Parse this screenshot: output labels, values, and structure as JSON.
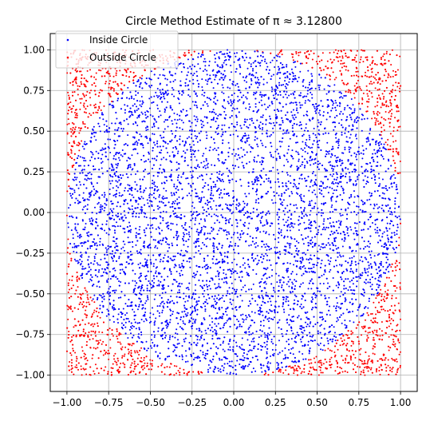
{
  "chart_data": {
    "type": "scatter",
    "title": "Circle Method Estimate of π ≈ 3.12800",
    "xlabel": "",
    "ylabel": "",
    "xlim": [
      -1.1,
      1.1
    ],
    "ylim": [
      -1.1,
      1.1
    ],
    "xticks": [
      -1.0,
      -0.75,
      -0.5,
      -0.25,
      0.0,
      0.25,
      0.5,
      0.75,
      1.0
    ],
    "yticks": [
      -1.0,
      -0.75,
      -0.5,
      -0.25,
      0.0,
      0.25,
      0.5,
      0.75,
      1.0
    ],
    "xtick_labels": [
      "−1.00",
      "−0.75",
      "−0.50",
      "−0.25",
      "0.00",
      "0.25",
      "0.50",
      "0.75",
      "1.00"
    ],
    "ytick_labels": [
      "−1.00",
      "−0.75",
      "−0.50",
      "−0.25",
      "0.00",
      "0.25",
      "0.50",
      "0.75",
      "1.00"
    ],
    "grid": true,
    "legend_position": "upper-left",
    "sample_domain": {
      "x": [
        -1,
        1
      ],
      "y": [
        -1,
        1
      ]
    },
    "circle_radius": 1,
    "total_points": 10000,
    "series": [
      {
        "name": "Inside Circle",
        "color": "#0000ff",
        "rule": "x^2 + y^2 <= 1"
      },
      {
        "name": "Outside Circle",
        "color": "#ff0000",
        "rule": "x^2 + y^2 > 1"
      }
    ]
  }
}
